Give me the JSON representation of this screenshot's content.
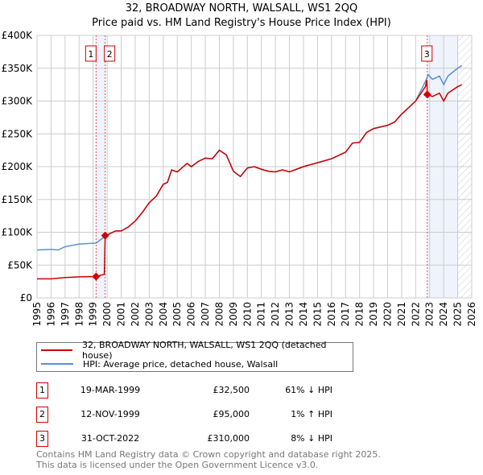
{
  "title": "32, BROADWAY NORTH, WALSALL, WS1 2QQ",
  "subtitle": "Price paid vs. HM Land Registry's House Price Index (HPI)",
  "chart_data": {
    "type": "line",
    "xlim": [
      1995,
      2026
    ],
    "ylim": [
      0,
      400000
    ],
    "x_ticks": [
      "1995",
      "1996",
      "1997",
      "1998",
      "1999",
      "2000",
      "2001",
      "2002",
      "2003",
      "2004",
      "2005",
      "2006",
      "2007",
      "2008",
      "2009",
      "2010",
      "2011",
      "2012",
      "2013",
      "2014",
      "2015",
      "2016",
      "2017",
      "2018",
      "2019",
      "2020",
      "2021",
      "2022",
      "2023",
      "2024",
      "2025",
      "2026"
    ],
    "y_ticks": [
      {
        "v": 0,
        "l": "£0"
      },
      {
        "v": 50000,
        "l": "£50K"
      },
      {
        "v": 100000,
        "l": "£100K"
      },
      {
        "v": 150000,
        "l": "£150K"
      },
      {
        "v": 200000,
        "l": "£200K"
      },
      {
        "v": 250000,
        "l": "£250K"
      },
      {
        "v": 300000,
        "l": "£300K"
      },
      {
        "v": 350000,
        "l": "£350K"
      },
      {
        "v": 400000,
        "l": "£400K"
      }
    ],
    "series": [
      {
        "name": "32, BROADWAY NORTH, WALSALL, WS1 2QQ (detached house)",
        "color": "#cc0000",
        "x": [
          1995,
          1996,
          1996.5,
          1997,
          1998,
          1999.22,
          1999.8,
          1999.86,
          2000,
          2000.6,
          2001,
          2001.5,
          2002,
          2002.5,
          2003,
          2003.5,
          2004,
          2004.3,
          2004.6,
          2005,
          2005.7,
          2006,
          2006.5,
          2007,
          2007.5,
          2008,
          2008.5,
          2009,
          2009.5,
          2010,
          2010.5,
          2011,
          2011.5,
          2012,
          2012.5,
          2013,
          2013.5,
          2014,
          2015,
          2016,
          2017,
          2017.5,
          2018,
          2018.5,
          2019,
          2020,
          2020.5,
          2021,
          2021.5,
          2022,
          2022.7,
          2022.8,
          2022.83,
          2023.2,
          2023.7,
          2024,
          2024.3,
          2025,
          2025.3
        ],
        "y": [
          29000,
          29000,
          30000,
          31000,
          32000,
          32500,
          36000,
          95000,
          96000,
          102000,
          102000,
          108000,
          117000,
          130000,
          145000,
          155000,
          173000,
          176000,
          195000,
          192000,
          205000,
          200000,
          208000,
          213000,
          212000,
          225000,
          218000,
          193000,
          185000,
          198000,
          200000,
          196000,
          193000,
          192000,
          195000,
          192000,
          196000,
          200000,
          206000,
          212000,
          222000,
          236000,
          237000,
          252000,
          258000,
          263000,
          268000,
          280000,
          290000,
          300000,
          322000,
          332000,
          310000,
          307000,
          312000,
          300000,
          312000,
          322000,
          325000
        ]
      },
      {
        "name": "HPI: Average price, detached house, Walsall",
        "color": "#5b8fd6",
        "x": [
          1995,
          1996,
          1996.5,
          1997,
          1998,
          1999.22,
          1999.86,
          2000,
          2000.6,
          2001,
          2001.5,
          2002,
          2002.5,
          2003,
          2003.5,
          2004,
          2004.3,
          2004.6,
          2005,
          2005.7,
          2006,
          2006.5,
          2007,
          2007.5,
          2008,
          2008.5,
          2009,
          2009.5,
          2010,
          2010.5,
          2011,
          2011.5,
          2012,
          2012.5,
          2013,
          2013.5,
          2014,
          2015,
          2016,
          2017,
          2017.5,
          2018,
          2018.5,
          2019,
          2020,
          2020.5,
          2021,
          2021.5,
          2022,
          2022.7,
          2022.9,
          2023.2,
          2023.7,
          2024,
          2024.3,
          2025,
          2025.3
        ],
        "y": [
          73000,
          74000,
          73000,
          78000,
          82000,
          83500,
          94000,
          96000,
          102000,
          102000,
          108000,
          117000,
          130000,
          145000,
          155000,
          173000,
          176000,
          195000,
          192000,
          205000,
          200000,
          208000,
          213000,
          212000,
          225000,
          218000,
          193000,
          185000,
          198000,
          200000,
          196000,
          193000,
          192000,
          195000,
          192000,
          196000,
          200000,
          206000,
          212000,
          222000,
          236000,
          237000,
          252000,
          258000,
          263000,
          268000,
          280000,
          290000,
          300000,
          330000,
          340000,
          333000,
          338000,
          325000,
          338000,
          350000,
          354000
        ]
      }
    ],
    "sales": [
      {
        "n": "1",
        "x": 1999.21,
        "y": 32500
      },
      {
        "n": "2",
        "x": 1999.86,
        "y": 95000
      },
      {
        "n": "3",
        "x": 2022.83,
        "y": 310000
      }
    ],
    "shaded": [
      [
        1999.21,
        1999.86
      ],
      [
        2022.83,
        2025.0
      ]
    ],
    "hatched_from": 2025.0
  },
  "legend": [
    "32, BROADWAY NORTH, WALSALL, WS1 2QQ (detached house)",
    "HPI: Average price, detached house, Walsall"
  ],
  "transactions": [
    {
      "n": "1",
      "date": "19-MAR-1999",
      "price": "£32,500",
      "hpi": "61% ↓ HPI"
    },
    {
      "n": "2",
      "date": "12-NOV-1999",
      "price": "£95,000",
      "hpi": "1% ↑ HPI"
    },
    {
      "n": "3",
      "date": "31-OCT-2022",
      "price": "£310,000",
      "hpi": "8% ↓ HPI"
    }
  ],
  "footer": [
    "Contains HM Land Registry data © Crown copyright and database right 2025.",
    "This data is licensed under the Open Government Licence v3.0."
  ]
}
